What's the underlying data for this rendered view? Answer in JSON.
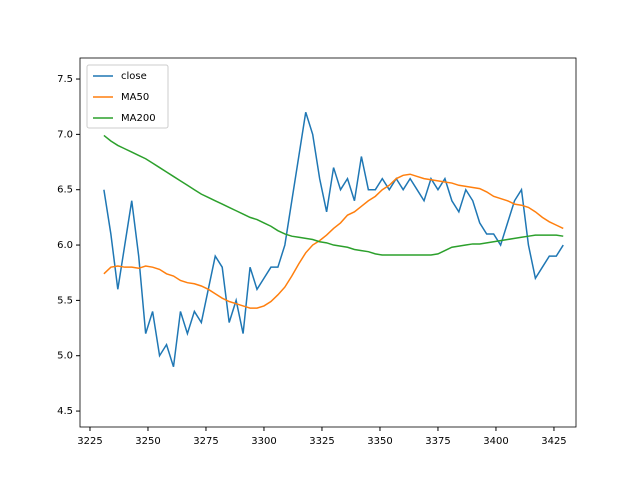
{
  "chart_data": {
    "type": "line",
    "x": [
      3231,
      3234,
      3237,
      3240,
      3243,
      3246,
      3249,
      3252,
      3255,
      3258,
      3261,
      3264,
      3267,
      3270,
      3273,
      3276,
      3279,
      3282,
      3285,
      3288,
      3291,
      3294,
      3297,
      3300,
      3303,
      3306,
      3309,
      3312,
      3315,
      3318,
      3321,
      3324,
      3327,
      3330,
      3333,
      3336,
      3339,
      3342,
      3345,
      3348,
      3351,
      3354,
      3357,
      3360,
      3363,
      3366,
      3369,
      3372,
      3375,
      3378,
      3381,
      3384,
      3387,
      3390,
      3393,
      3396,
      3399,
      3402,
      3405,
      3408,
      3411,
      3414,
      3417,
      3420,
      3423,
      3426,
      3429
    ],
    "series": [
      {
        "name": "close",
        "color": "#1f77b4",
        "values": [
          6.5,
          6.1,
          5.6,
          6.0,
          6.4,
          5.9,
          5.2,
          5.4,
          5.0,
          5.1,
          4.9,
          5.4,
          5.2,
          5.4,
          5.3,
          5.6,
          5.9,
          5.8,
          5.3,
          5.5,
          5.2,
          5.8,
          5.6,
          5.7,
          5.8,
          5.8,
          6.0,
          6.4,
          6.8,
          7.2,
          7.0,
          6.6,
          6.3,
          6.7,
          6.5,
          6.6,
          6.4,
          6.8,
          6.5,
          6.5,
          6.6,
          6.5,
          6.6,
          6.5,
          6.6,
          6.5,
          6.4,
          6.6,
          6.5,
          6.6,
          6.4,
          6.3,
          6.5,
          6.4,
          6.2,
          6.1,
          6.1,
          6.0,
          6.2,
          6.4,
          6.5,
          6.0,
          5.7,
          5.8,
          5.9,
          5.9,
          6.0
        ]
      },
      {
        "name": "MA50",
        "color": "#ff7f0e",
        "values": [
          5.74,
          5.8,
          5.81,
          5.8,
          5.8,
          5.79,
          5.81,
          5.8,
          5.78,
          5.74,
          5.72,
          5.68,
          5.66,
          5.65,
          5.63,
          5.6,
          5.56,
          5.52,
          5.49,
          5.47,
          5.45,
          5.43,
          5.43,
          5.45,
          5.49,
          5.55,
          5.62,
          5.72,
          5.83,
          5.93,
          6.0,
          6.04,
          6.09,
          6.15,
          6.2,
          6.27,
          6.3,
          6.35,
          6.4,
          6.44,
          6.5,
          6.54,
          6.6,
          6.63,
          6.64,
          6.62,
          6.6,
          6.59,
          6.58,
          6.57,
          6.56,
          6.54,
          6.53,
          6.52,
          6.51,
          6.48,
          6.44,
          6.42,
          6.4,
          6.37,
          6.36,
          6.34,
          6.3,
          6.25,
          6.21,
          6.18,
          6.15
        ]
      },
      {
        "name": "MA200",
        "color": "#2ca02c",
        "values": [
          6.99,
          6.94,
          6.9,
          6.87,
          6.84,
          6.81,
          6.78,
          6.74,
          6.7,
          6.66,
          6.62,
          6.58,
          6.54,
          6.5,
          6.46,
          6.43,
          6.4,
          6.37,
          6.34,
          6.31,
          6.28,
          6.25,
          6.23,
          6.2,
          6.17,
          6.13,
          6.1,
          6.08,
          6.07,
          6.06,
          6.05,
          6.03,
          6.02,
          6.0,
          5.99,
          5.98,
          5.96,
          5.95,
          5.94,
          5.92,
          5.91,
          5.91,
          5.91,
          5.91,
          5.91,
          5.91,
          5.91,
          5.91,
          5.92,
          5.95,
          5.98,
          5.99,
          6.0,
          6.01,
          6.01,
          6.02,
          6.03,
          6.04,
          6.05,
          6.06,
          6.07,
          6.08,
          6.09,
          6.09,
          6.09,
          6.09,
          6.08
        ]
      }
    ],
    "xlim": [
      3220.7,
      3434.5
    ],
    "xticks": [
      3225,
      3250,
      3275,
      3300,
      3325,
      3350,
      3375,
      3400,
      3425
    ],
    "ylim": [
      4.356,
      7.69
    ],
    "yticks": [
      4.5,
      {
        "value": 5,
        "label": "5.0"
      },
      5.5,
      {
        "value": 6,
        "label": "6.0"
      },
      6.5,
      {
        "value": 7,
        "label": "7.0"
      },
      7.5
    ],
    "legend": "upper left"
  }
}
